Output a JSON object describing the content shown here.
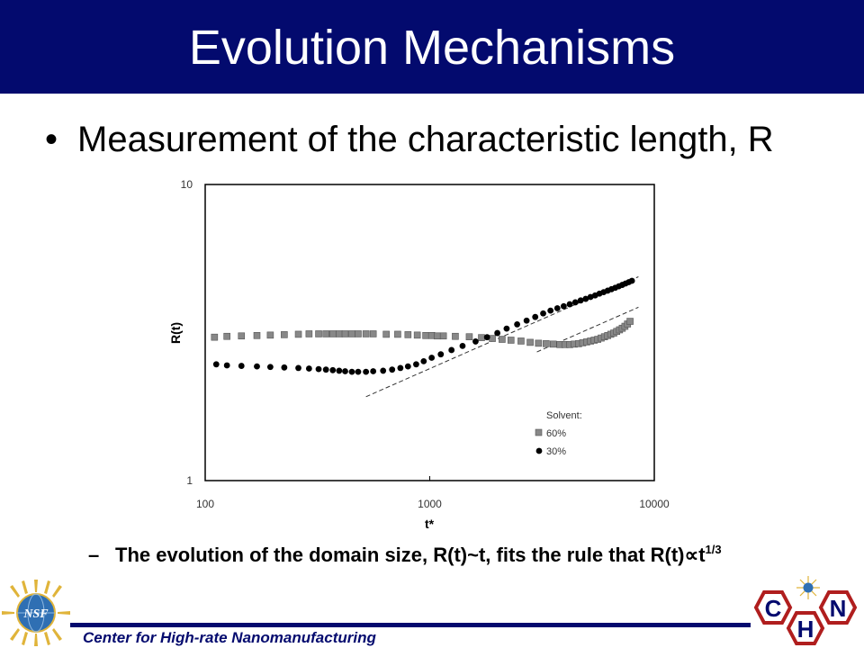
{
  "slide": {
    "title": "Evolution Mechanisms",
    "bullet": "Measurement of the characteristic length, R",
    "sub_bullet_main": "The evolution of the domain size, R(t)~t, fits the rule that R(t)∝t",
    "sub_bullet_sup": "1/3",
    "footer": "Center for High-rate Nanomanufacturing",
    "logo_nsf_text": "NSF",
    "logo_chn_letters": [
      "C",
      "N",
      "H"
    ],
    "colors": {
      "navy": "#030a6e",
      "accent_red": "#b01e1e",
      "nsf_blue": "#2f6fb3",
      "nsf_gold": "#e0b43a"
    }
  },
  "chart_data": {
    "type": "scatter",
    "xlabel": "t*",
    "ylabel": "R(t)",
    "x_scale": "log",
    "y_scale": "log",
    "xlim": [
      100,
      10000
    ],
    "ylim": [
      1,
      10
    ],
    "x_ticks": [
      100,
      1000,
      10000
    ],
    "x_tick_labels": [
      "100",
      "1000",
      "10000"
    ],
    "y_ticks": [
      1,
      10
    ],
    "y_tick_labels": [
      "1",
      "10"
    ],
    "grid": false,
    "legend": {
      "title": "Solvent:",
      "position": "bottom-right"
    },
    "series": [
      {
        "name": "60%",
        "marker": "square",
        "color": "#888888",
        "x": [
          110,
          125,
          145,
          170,
          195,
          225,
          260,
          290,
          320,
          345,
          370,
          395,
          420,
          450,
          480,
          520,
          560,
          640,
          720,
          800,
          880,
          960,
          1020,
          1080,
          1150,
          1300,
          1500,
          1700,
          1900,
          2100,
          2300,
          2550,
          2800,
          3050,
          3300,
          3550,
          3800,
          4000,
          4200,
          4400,
          4600,
          4800,
          5000,
          5200,
          5400,
          5600,
          5800,
          6000,
          6200,
          6400,
          6600,
          6800,
          7000,
          7200,
          7400,
          7600,
          7800
        ],
        "y": [
          3.05,
          3.07,
          3.08,
          3.09,
          3.1,
          3.11,
          3.12,
          3.13,
          3.13,
          3.13,
          3.13,
          3.13,
          3.13,
          3.13,
          3.13,
          3.13,
          3.13,
          3.12,
          3.12,
          3.11,
          3.1,
          3.09,
          3.09,
          3.08,
          3.08,
          3.07,
          3.06,
          3.04,
          3.02,
          3.0,
          2.98,
          2.96,
          2.93,
          2.91,
          2.9,
          2.89,
          2.88,
          2.88,
          2.88,
          2.89,
          2.9,
          2.92,
          2.94,
          2.96,
          2.98,
          3.0,
          3.03,
          3.06,
          3.09,
          3.12,
          3.15,
          3.19,
          3.23,
          3.27,
          3.32,
          3.38,
          3.45
        ]
      },
      {
        "name": "30%",
        "marker": "circle",
        "color": "#000000",
        "x": [
          112,
          125,
          145,
          170,
          195,
          225,
          260,
          290,
          320,
          345,
          370,
          395,
          420,
          450,
          480,
          520,
          560,
          620,
          680,
          740,
          800,
          870,
          940,
          1020,
          1120,
          1250,
          1400,
          1600,
          1800,
          2000,
          2200,
          2450,
          2700,
          2950,
          3200,
          3450,
          3700,
          3950,
          4200,
          4450,
          4700,
          4950,
          5200,
          5450,
          5700,
          5950,
          6200,
          6450,
          6700,
          6950,
          7200,
          7450,
          7700,
          7950
        ],
        "y": [
          2.47,
          2.45,
          2.44,
          2.43,
          2.42,
          2.41,
          2.4,
          2.39,
          2.38,
          2.37,
          2.36,
          2.35,
          2.34,
          2.33,
          2.33,
          2.33,
          2.34,
          2.35,
          2.37,
          2.4,
          2.43,
          2.47,
          2.53,
          2.6,
          2.67,
          2.76,
          2.85,
          2.95,
          3.05,
          3.15,
          3.26,
          3.37,
          3.47,
          3.57,
          3.67,
          3.75,
          3.82,
          3.88,
          3.94,
          4.0,
          4.06,
          4.11,
          4.17,
          4.22,
          4.28,
          4.33,
          4.38,
          4.43,
          4.48,
          4.53,
          4.58,
          4.63,
          4.68,
          4.73
        ]
      }
    ],
    "fit_lines": [
      {
        "style": "dashed",
        "x": [
          520,
          8500
        ],
        "y": [
          1.92,
          4.88
        ]
      },
      {
        "style": "dashed",
        "x": [
          3000,
          8500
        ],
        "y": [
          2.72,
          3.85
        ]
      }
    ]
  }
}
